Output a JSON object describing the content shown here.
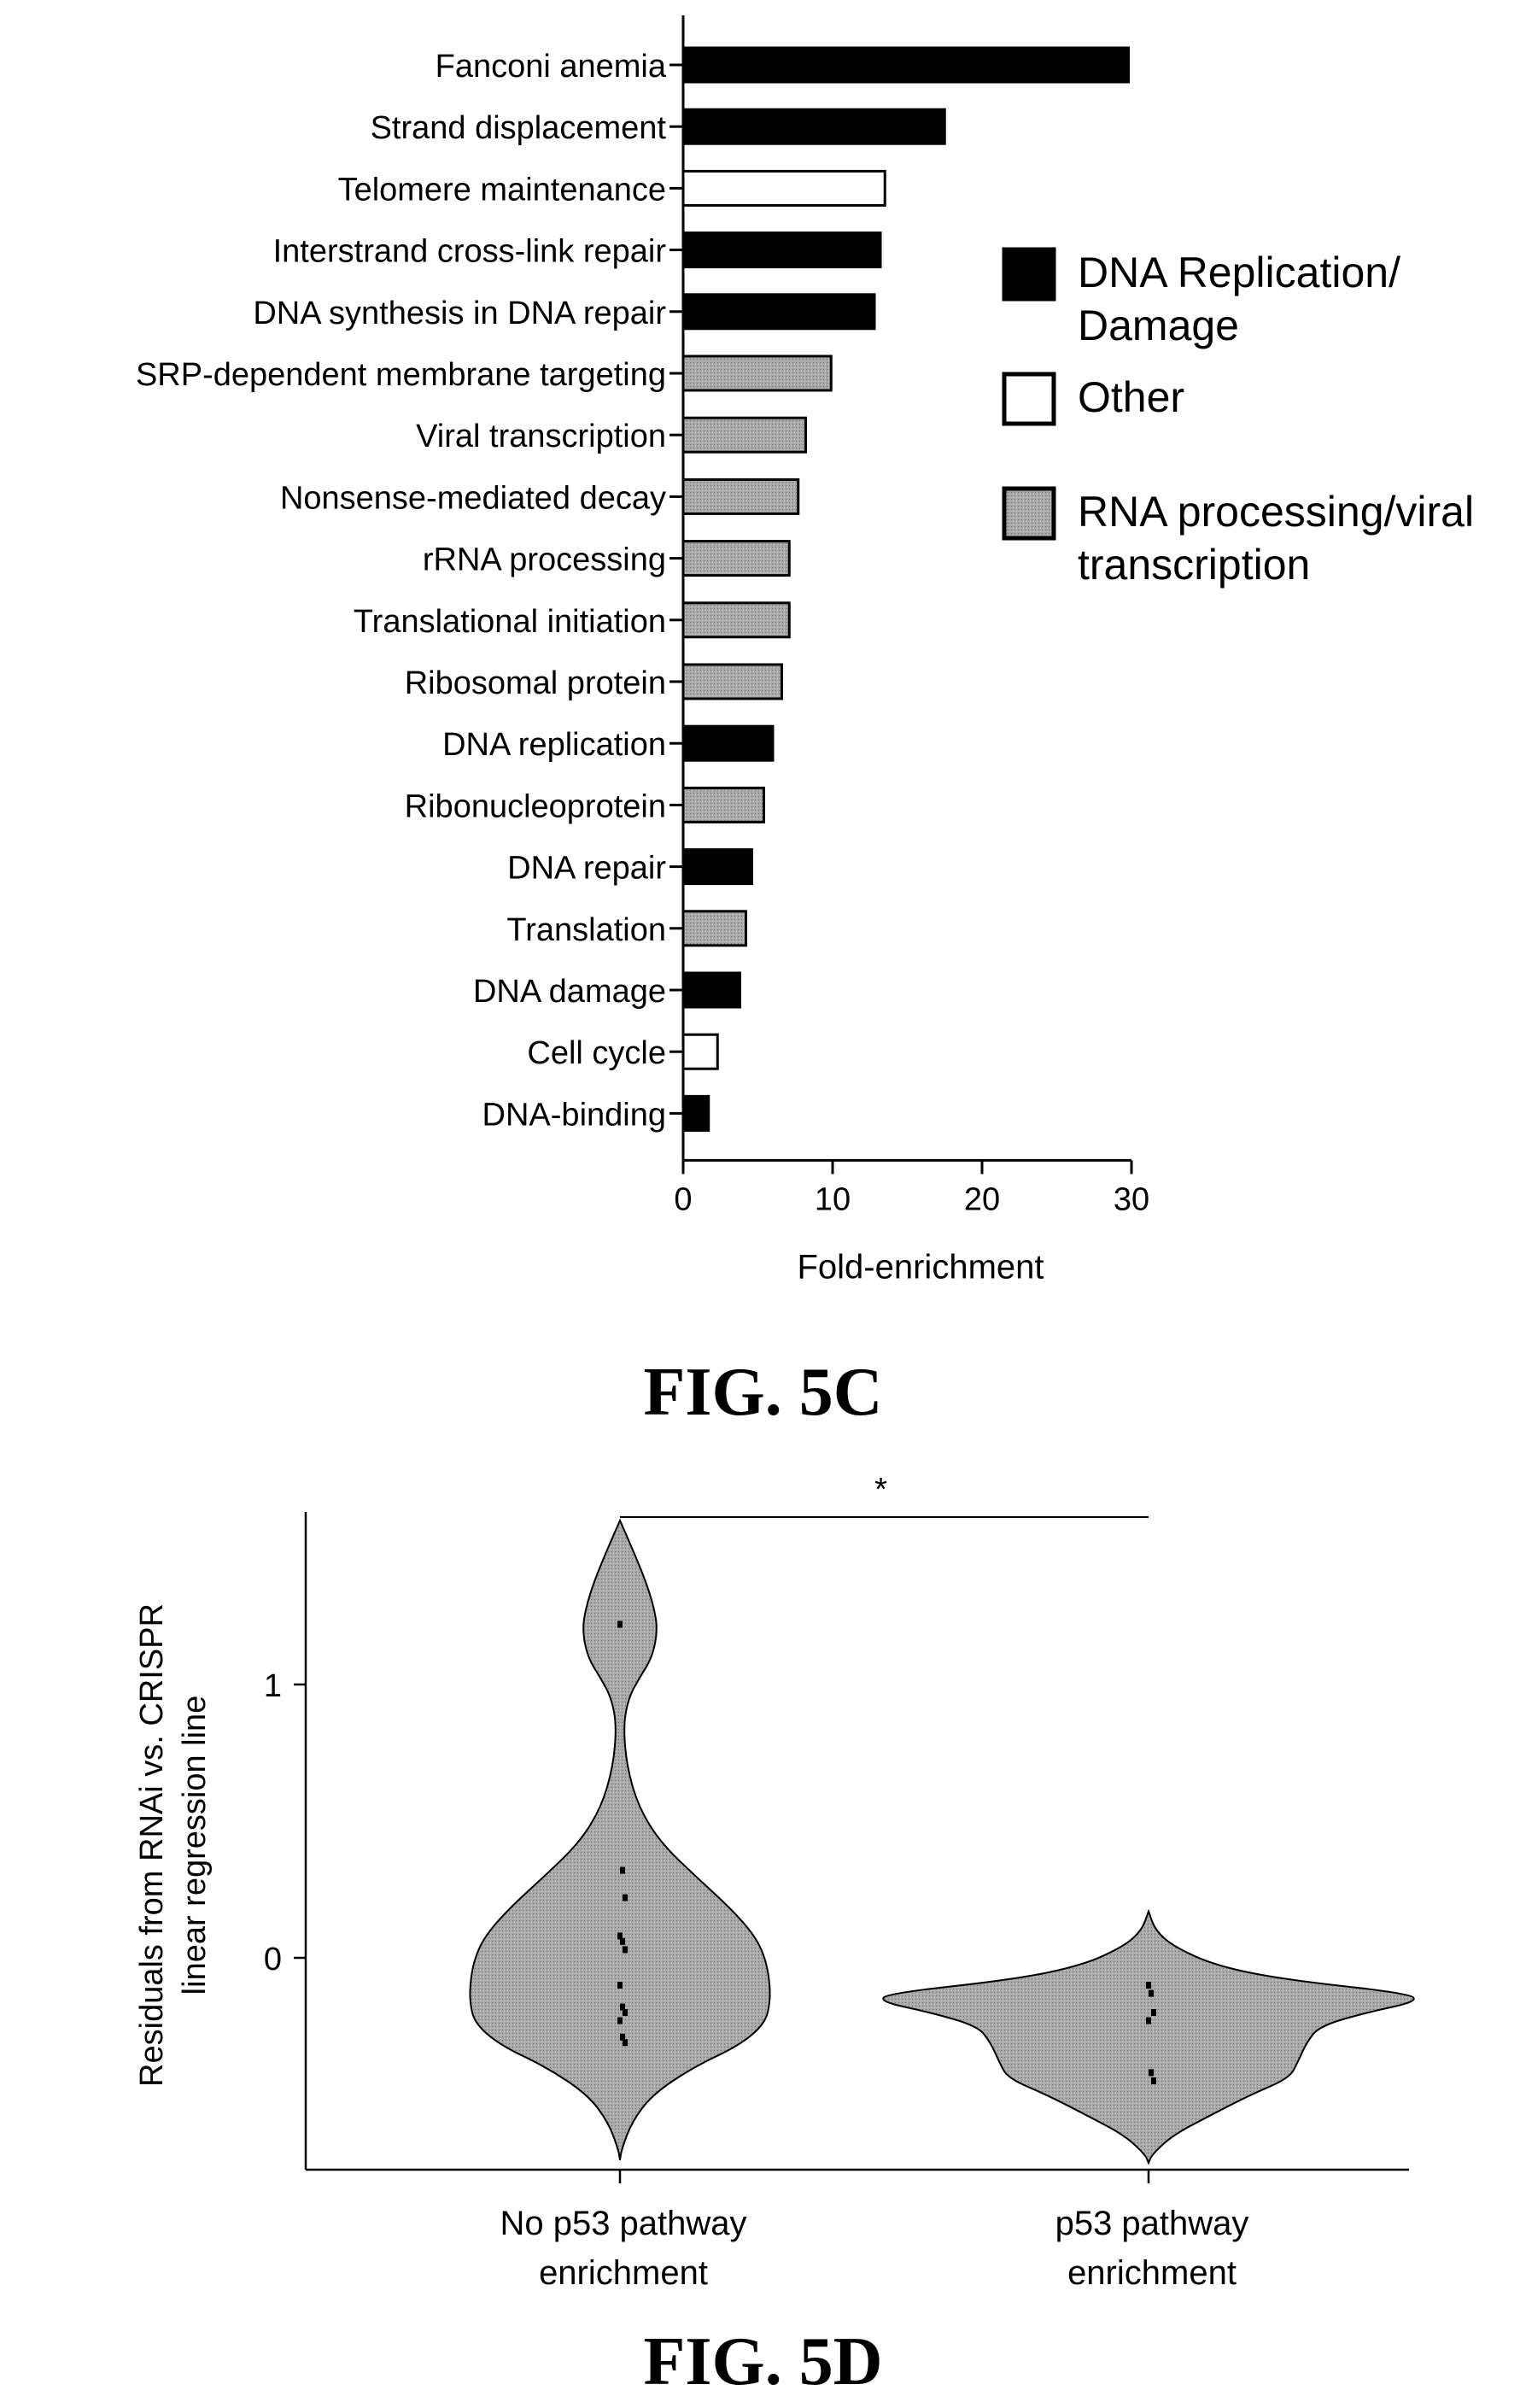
{
  "figure_c_label": "FIG. 5C",
  "figure_d_label": "FIG. 5D",
  "colors": {
    "dna_replication_damage": "#000000",
    "other": "#ffffff",
    "rna_processing": "#a8a8a8",
    "axis": "#000000"
  },
  "chart_data": [
    {
      "type": "bar",
      "orientation": "horizontal",
      "title": "",
      "xlabel": "Fold-enrichment",
      "ylabel": "",
      "xlim": [
        0,
        30
      ],
      "xticks": [
        0,
        10,
        20,
        30
      ],
      "categories": [
        "Fanconi anemia",
        "Strand displacement",
        "Telomere maintenance",
        "Interstrand cross-link repair",
        "DNA synthesis in DNA repair",
        "SRP-dependent membrane targeting",
        "Viral transcription",
        "Nonsense-mediated decay",
        "rRNA processing",
        "Translational initiation",
        "Ribosomal protein",
        "DNA replication",
        "Ribonucleoprotein",
        "DNA repair",
        "Translation",
        "DNA damage",
        "Cell cycle",
        "DNA-binding"
      ],
      "values": [
        29.8,
        17.5,
        13.5,
        13.2,
        12.8,
        9.9,
        8.2,
        7.7,
        7.1,
        7.1,
        6.6,
        6.0,
        5.4,
        4.6,
        4.2,
        3.8,
        2.3,
        1.7
      ],
      "groups": [
        "dna",
        "dna",
        "other",
        "dna",
        "dna",
        "rna",
        "rna",
        "rna",
        "rna",
        "rna",
        "rna",
        "dna",
        "rna",
        "dna",
        "rna",
        "dna",
        "other",
        "dna"
      ],
      "legend": {
        "placement": "right",
        "entries": [
          {
            "key": "dna",
            "lines": [
              "DNA Replication/",
              "Damage"
            ]
          },
          {
            "key": "other",
            "lines": [
              "Other"
            ]
          },
          {
            "key": "rna",
            "lines": [
              "RNA processing/viral",
              "transcription"
            ]
          }
        ]
      }
    },
    {
      "type": "violin",
      "title": "",
      "ylabel_lines": [
        "Residuals from RNAi vs. CRISPR",
        "linear regression line"
      ],
      "xlabel": "",
      "ylim": [
        -0.75,
        1.6
      ],
      "yticks": [
        0,
        1
      ],
      "significance": "*",
      "groups": [
        {
          "lines": [
            "No p53 pathway",
            "enrichment"
          ],
          "points": [
            1.22,
            0.32,
            0.22,
            0.08,
            0.06,
            0.03,
            -0.1,
            -0.18,
            -0.2,
            -0.23,
            -0.29,
            -0.31
          ]
        },
        {
          "lines": [
            "p53 pathway",
            "enrichment"
          ],
          "points": [
            -0.1,
            -0.13,
            -0.2,
            -0.23,
            -0.42,
            -0.45
          ]
        }
      ]
    }
  ]
}
